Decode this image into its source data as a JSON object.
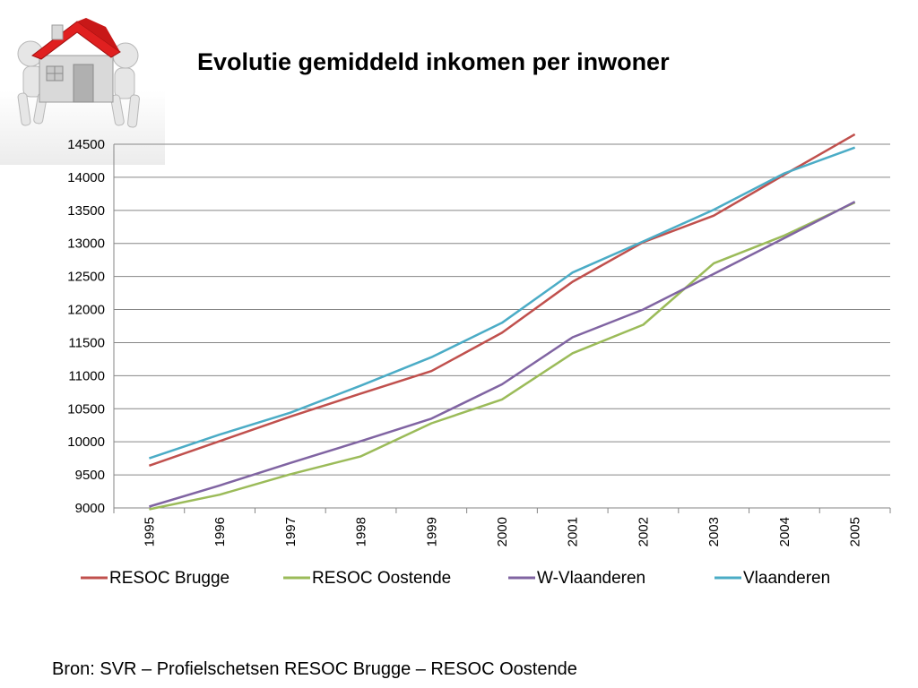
{
  "slide": {
    "title": "Evolutie gemiddeld inkomen per inwoner",
    "source": "Bron: SVR – Profielschetsen RESOC Brugge – RESOC Oostende"
  },
  "logo": {
    "icon": "house-carrying-figures-icon"
  },
  "chart_data": {
    "type": "line",
    "title": "Evolutie gemiddeld inkomen per inwoner",
    "x": [
      "1995",
      "1996",
      "1997",
      "1998",
      "1999",
      "2000",
      "2001",
      "2002",
      "2003",
      "2004",
      "2005"
    ],
    "ylim": [
      9000,
      14500
    ],
    "yticks": [
      9000,
      9500,
      10000,
      10500,
      11000,
      11500,
      12000,
      12500,
      13000,
      13500,
      14000,
      14500
    ],
    "grid": true,
    "legend_position": "bottom",
    "series": [
      {
        "name": "RESOC Brugge",
        "color": "#C0504D",
        "values": [
          9640,
          10010,
          10380,
          10730,
          11070,
          11650,
          12420,
          13020,
          13420,
          14040,
          14650
        ]
      },
      {
        "name": "RESOC Oostende",
        "color": "#9BBB59",
        "values": [
          8980,
          9200,
          9510,
          9780,
          10280,
          10640,
          11340,
          11770,
          12700,
          13120,
          13620
        ]
      },
      {
        "name": "W-Vlaanderen",
        "color": "#8064A2",
        "values": [
          9020,
          9340,
          9680,
          10010,
          10350,
          10870,
          11580,
          12000,
          12540,
          13080,
          13630
        ]
      },
      {
        "name": "Vlaanderen",
        "color": "#4BACC6",
        "values": [
          9750,
          10110,
          10440,
          10850,
          11280,
          11800,
          12560,
          13030,
          13510,
          14060,
          14450
        ]
      }
    ]
  }
}
